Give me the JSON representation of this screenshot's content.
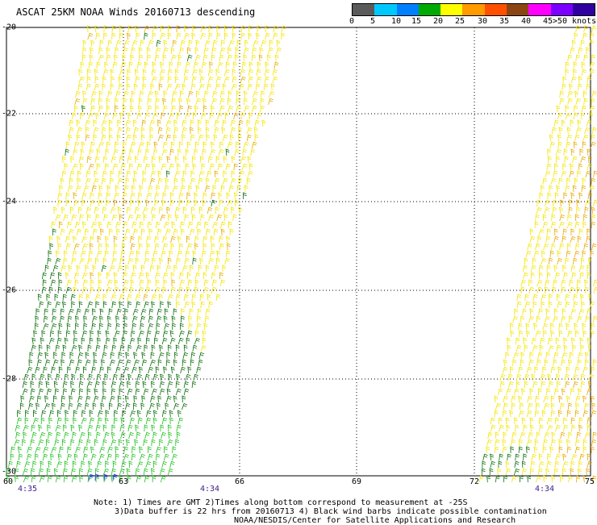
{
  "title": "ASCAT 25KM NOAA Winds 20160713 descending",
  "colorbar": {
    "segments": [
      "#5a5a5a",
      "#00c8ff",
      "#0080ff",
      "#00aa00",
      "#ffff00",
      "#ff9a00",
      "#ff5000",
      "#8b4513",
      "#ff00ff",
      "#7b00ff",
      "#3000a0"
    ],
    "labels": [
      "0",
      "5",
      "10",
      "15",
      "20",
      "25",
      "30",
      "35",
      "40",
      "45",
      ">50 knots"
    ]
  },
  "axes": {
    "lat_labels": [
      "-20",
      "-22",
      "-24",
      "-26",
      "-28",
      "-30"
    ],
    "lon_labels": [
      "60",
      "63",
      "66",
      "69",
      "72",
      "75"
    ]
  },
  "time_labels": [
    "4:35",
    "4:34",
    "4:34"
  ],
  "notes": {
    "line1": "Note: 1) Times are GMT 2)Times along bottom correspond to measurement at -25S",
    "line2": "3)Data buffer is 22 hrs from 20160713 4) Black wind barbs indicate possible contamination",
    "line3": "NOAA/NESDIS/Center for Satellite Applications and Research"
  },
  "swaths": {
    "colors": {
      "yellow": "#f5e400",
      "orange": "#e8a800",
      "dark_green": "#0a6e0a",
      "green": "#1fbf1f",
      "light_green": "#39d63a",
      "blue": "#2040ff"
    }
  }
}
